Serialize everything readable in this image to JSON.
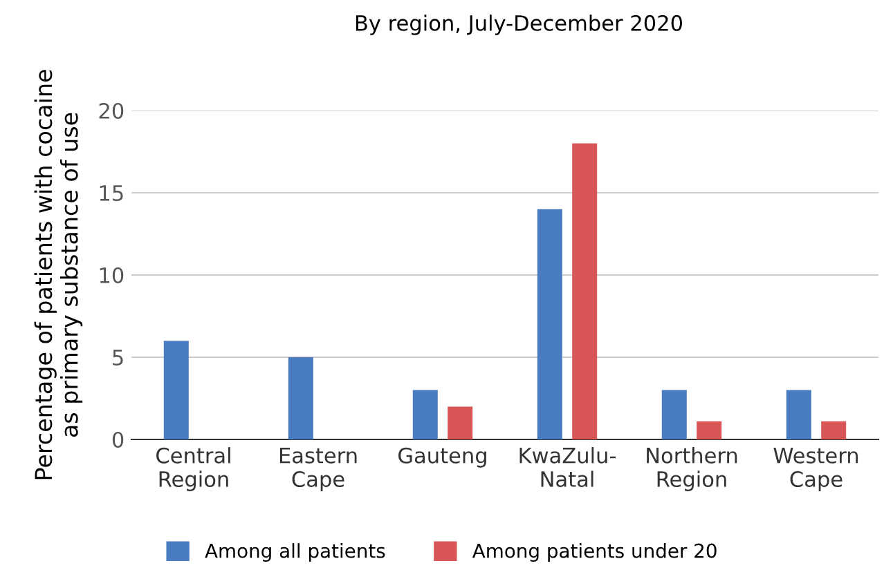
{
  "chart_data": {
    "type": "bar",
    "title": "By region, July-December 2020",
    "ylabel": "Percentage of patients with cocaine\nas primary substance of use",
    "categories": [
      "Central\nRegion",
      "Eastern\nCape",
      "Gauteng",
      "KwaZulu-\nNatal",
      "Northern\nRegion",
      "Western\nCape"
    ],
    "series": [
      {
        "name": "Among all patients",
        "color": "#4a7cc1",
        "values": [
          6,
          5,
          3,
          14,
          3,
          3
        ]
      },
      {
        "name": "Among patients under 20",
        "color": "#d95656",
        "values": [
          null,
          null,
          2,
          18,
          1.1,
          1.1
        ]
      }
    ],
    "ylim": [
      0,
      20
    ],
    "yticks": [
      0,
      5,
      10,
      15,
      20
    ],
    "grid": "y",
    "legend": "bottom"
  }
}
